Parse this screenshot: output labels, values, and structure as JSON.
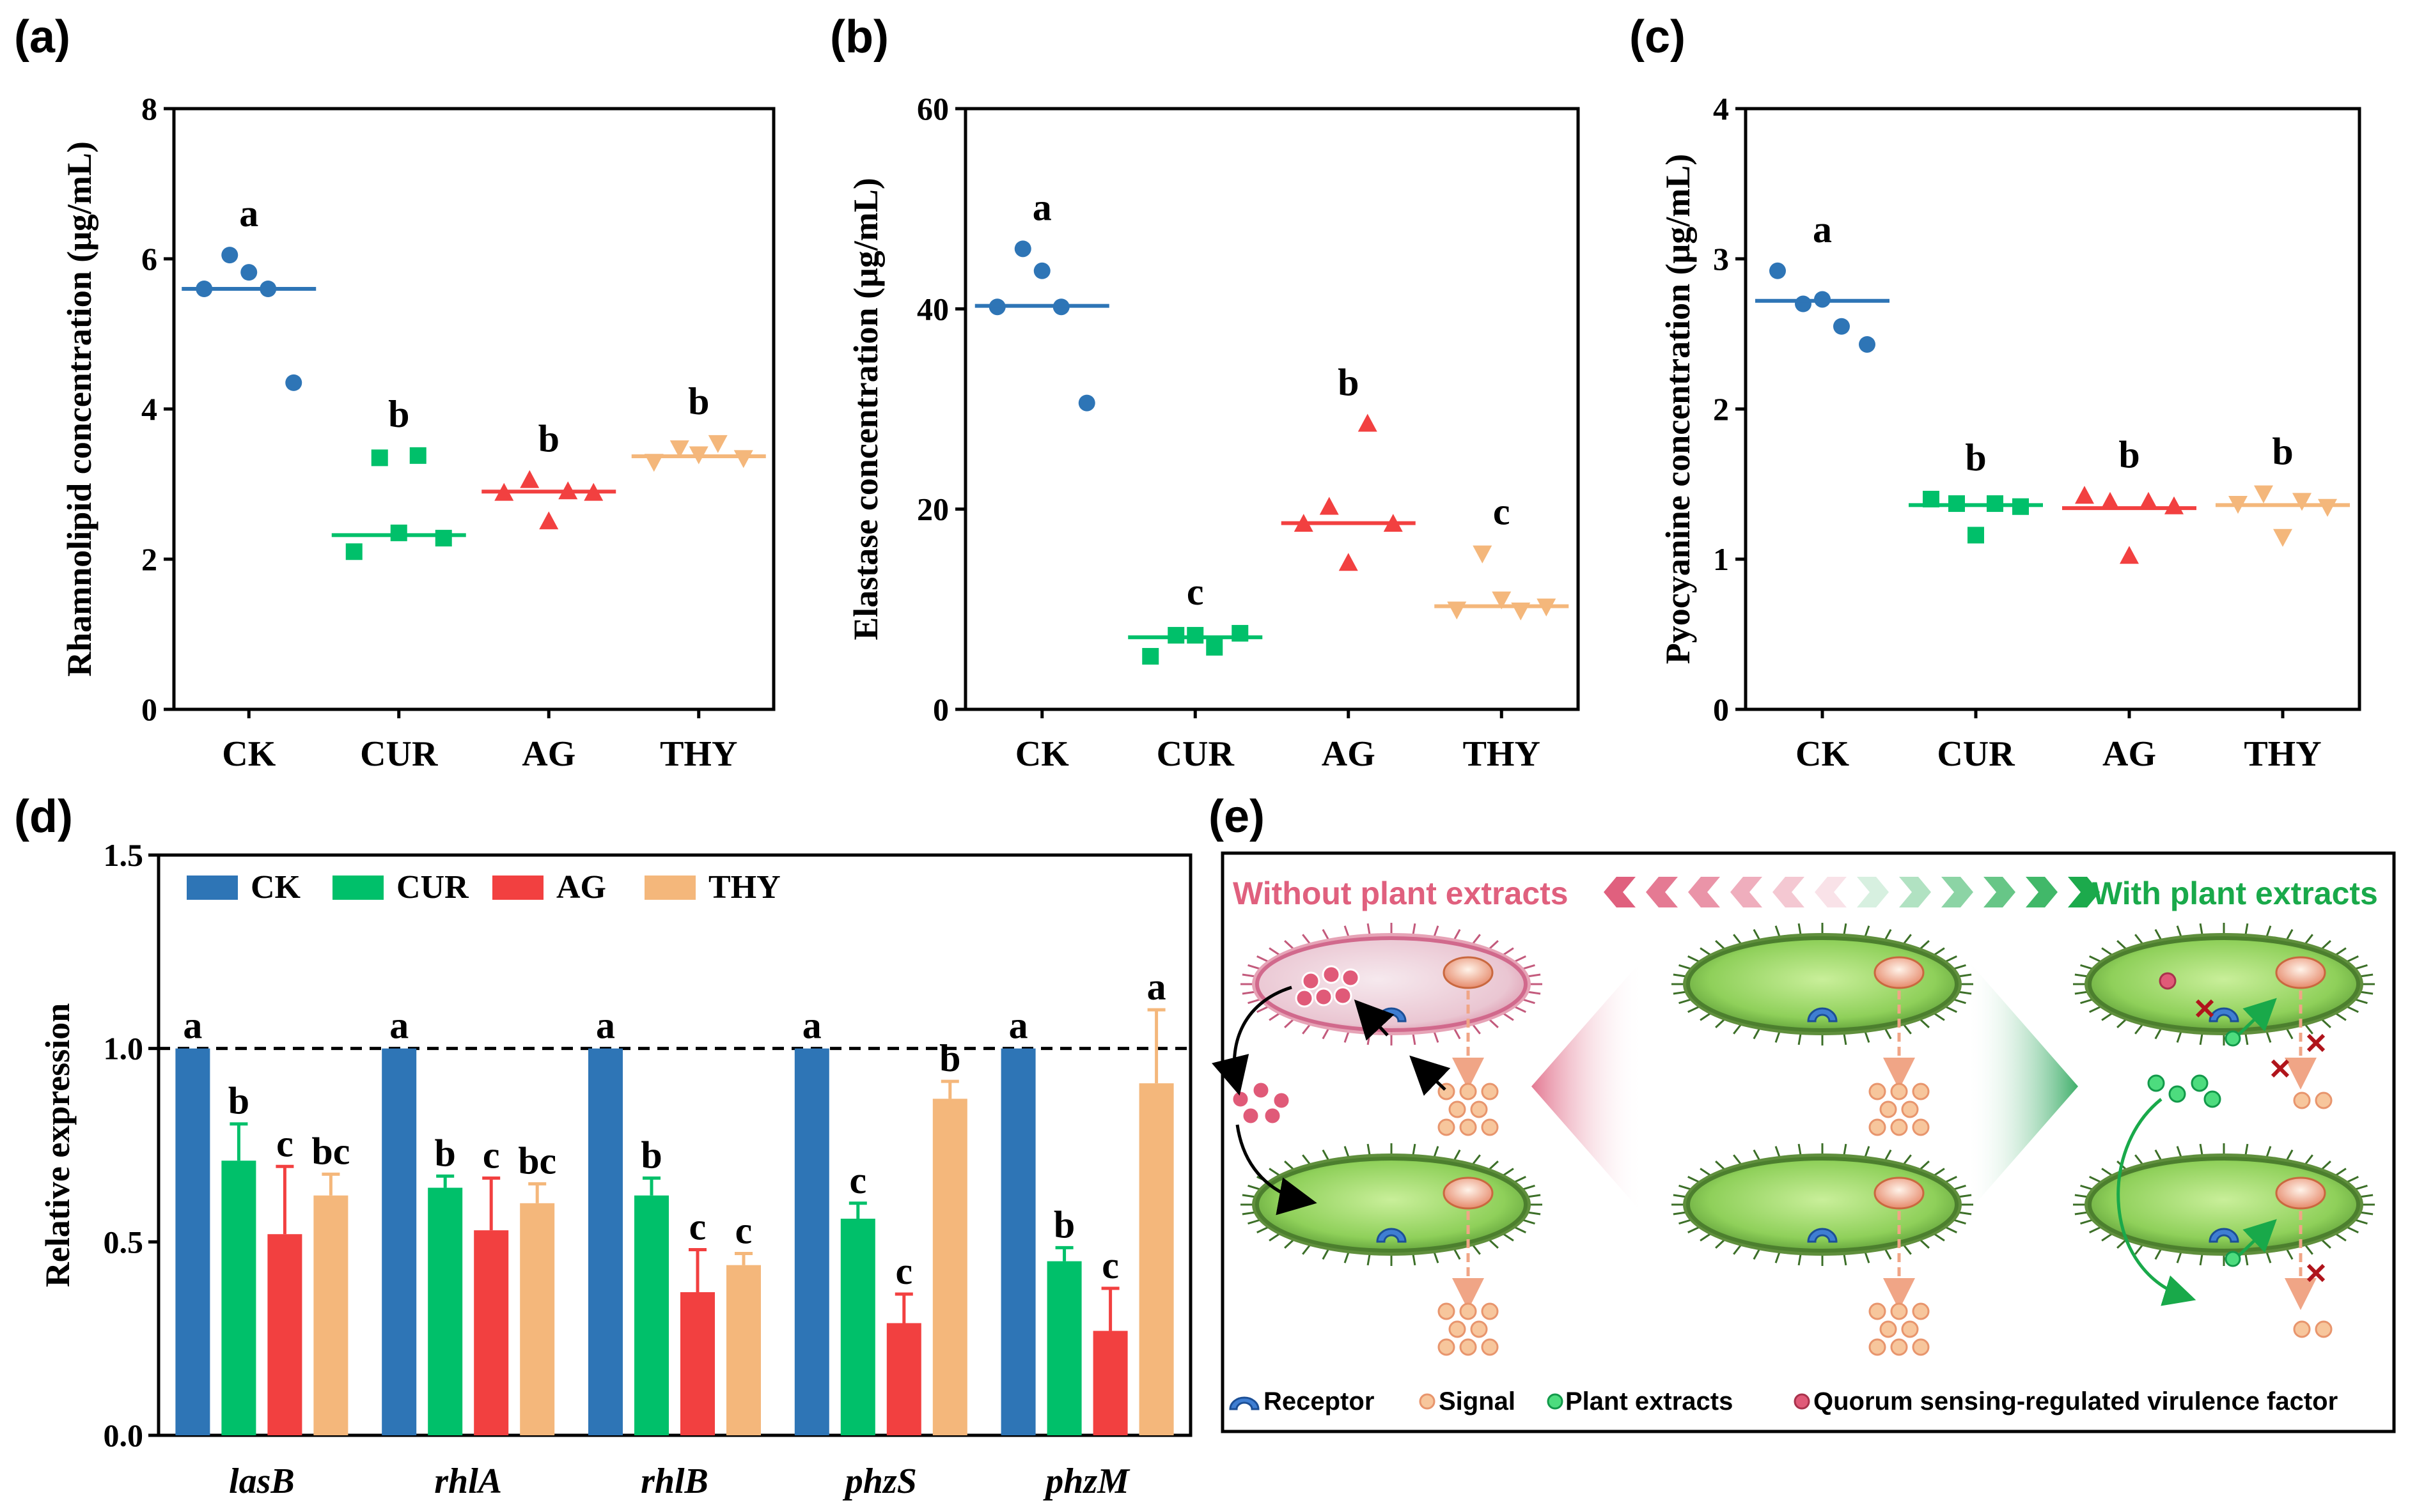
{
  "colors": {
    "CK": "#2E75B6",
    "CUR": "#00C06A",
    "AG": "#F24040",
    "THY": "#F4B77B",
    "without": "#E0607E",
    "with": "#19A94A"
  },
  "chart_data": [
    {
      "panel": "(a)",
      "type": "scatter",
      "ylabel": "Rhamnolipid concentration (μg/mL)",
      "ylim": [
        0,
        8
      ],
      "yticks": [
        "0",
        "2",
        "4",
        "6",
        "8"
      ],
      "categories": [
        "CK",
        "CUR",
        "AG",
        "THY"
      ],
      "groups": [
        {
          "name": "CK",
          "marker": "circle",
          "points": [
            5.6,
            6.05,
            5.82,
            5.6,
            4.35
          ],
          "mean": 5.6,
          "letter": "a"
        },
        {
          "name": "CUR",
          "marker": "square",
          "points": [
            2.1,
            3.35,
            2.35,
            3.38,
            2.28
          ],
          "mean": 2.32,
          "letter": "b"
        },
        {
          "name": "AG",
          "marker": "triangle-up",
          "points": [
            2.88,
            3.05,
            2.5,
            2.9,
            2.88
          ],
          "mean": 2.9,
          "letter": "b"
        },
        {
          "name": "THY",
          "marker": "triangle-down",
          "points": [
            3.3,
            3.48,
            3.4,
            3.55,
            3.35
          ],
          "mean": 3.37,
          "letter": "b"
        }
      ]
    },
    {
      "panel": "(b)",
      "type": "scatter",
      "ylabel": "Elastase concentration (μg/mL)",
      "ylim": [
        0,
        60
      ],
      "yticks": [
        "0",
        "20",
        "40",
        "60"
      ],
      "categories": [
        "CK",
        "CUR",
        "AG",
        "THY"
      ],
      "groups": [
        {
          "name": "CK",
          "marker": "circle",
          "points": [
            40.2,
            46.0,
            43.8,
            40.2,
            30.6
          ],
          "mean": 40.3,
          "letter": "a"
        },
        {
          "name": "CUR",
          "marker": "square",
          "points": [
            5.3,
            7.4,
            7.4,
            6.2,
            7.6
          ],
          "mean": 7.2,
          "letter": "c"
        },
        {
          "name": "AG",
          "marker": "triangle-up",
          "points": [
            18.5,
            20.2,
            14.6,
            28.5,
            18.5
          ],
          "mean": 18.6,
          "letter": "b"
        },
        {
          "name": "THY",
          "marker": "triangle-down",
          "points": [
            10.0,
            15.6,
            11.0,
            9.9,
            10.3
          ],
          "mean": 10.3,
          "letter": "c"
        }
      ]
    },
    {
      "panel": "(c)",
      "type": "scatter",
      "ylabel": "Pyocyanine concentration (μg/mL)",
      "ylim": [
        0,
        4
      ],
      "yticks": [
        "0",
        "1",
        "2",
        "3",
        "4"
      ],
      "categories": [
        "CK",
        "CUR",
        "AG",
        "THY"
      ],
      "groups": [
        {
          "name": "CK",
          "marker": "circle",
          "points": [
            2.92,
            2.7,
            2.73,
            2.55,
            2.43
          ],
          "mean": 2.72,
          "letter": "a"
        },
        {
          "name": "CUR",
          "marker": "square",
          "points": [
            1.4,
            1.37,
            1.16,
            1.37,
            1.35
          ],
          "mean": 1.36,
          "letter": "b"
        },
        {
          "name": "AG",
          "marker": "triangle-up",
          "points": [
            1.42,
            1.38,
            1.02,
            1.38,
            1.35
          ],
          "mean": 1.34,
          "letter": "b"
        },
        {
          "name": "THY",
          "marker": "triangle-down",
          "points": [
            1.37,
            1.44,
            1.15,
            1.39,
            1.35
          ],
          "mean": 1.36,
          "letter": "b"
        }
      ]
    },
    {
      "panel": "(d)",
      "type": "bar",
      "ylabel": "Relative expression",
      "ylim": [
        0,
        1.5
      ],
      "yticks": [
        "0.0",
        "0.5",
        "1.0",
        "1.5"
      ],
      "reference_line": 1.0,
      "categories": [
        "lasB",
        "rhlA",
        "rhlB",
        "phzS",
        "phzM"
      ],
      "series": [
        {
          "name": "CK",
          "values": [
            1.0,
            1.0,
            1.0,
            1.0,
            1.0
          ],
          "errors": [
            0,
            0,
            0,
            0,
            0
          ],
          "letters": [
            "a",
            "a",
            "a",
            "a",
            "a"
          ]
        },
        {
          "name": "CUR",
          "values": [
            0.71,
            0.64,
            0.62,
            0.56,
            0.45
          ],
          "errors": [
            0.095,
            0.03,
            0.045,
            0.04,
            0.035
          ],
          "letters": [
            "b",
            "b",
            "b",
            "c",
            "b"
          ]
        },
        {
          "name": "AG",
          "values": [
            0.52,
            0.53,
            0.37,
            0.29,
            0.27
          ],
          "errors": [
            0.175,
            0.135,
            0.11,
            0.075,
            0.11
          ],
          "letters": [
            "c",
            "c",
            "c",
            "c",
            "c"
          ]
        },
        {
          "name": "THY",
          "values": [
            0.62,
            0.6,
            0.44,
            0.87,
            0.91
          ],
          "errors": [
            0.055,
            0.05,
            0.03,
            0.045,
            0.19
          ],
          "letters": [
            "bc",
            "bc",
            "c",
            "b",
            "a"
          ]
        }
      ]
    }
  ],
  "panel_e": {
    "label": "(e)",
    "left_title": "Without plant extracts",
    "right_title": "With plant extracts",
    "legend": [
      "Receptor",
      "Signal",
      "Plant extracts",
      "Quorum sensing-regulated virulence factor"
    ]
  }
}
